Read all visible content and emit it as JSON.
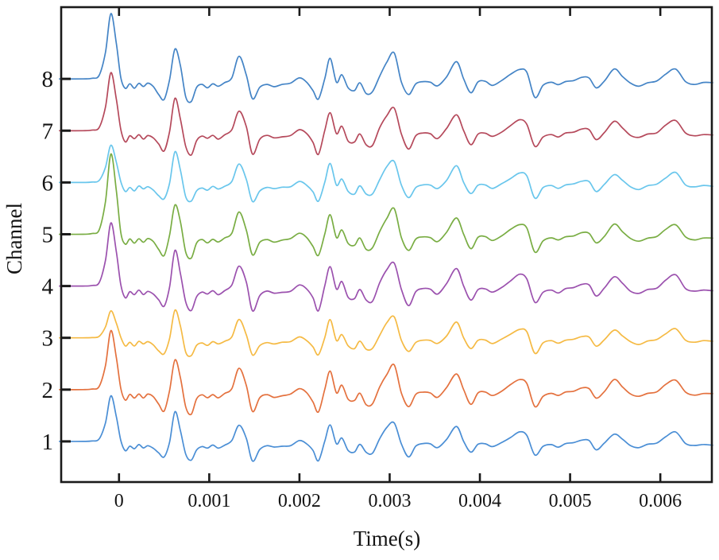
{
  "figure": {
    "background": "#ffffff",
    "axis_color": "#1a1a1a"
  },
  "chart_data": {
    "type": "line",
    "title": "",
    "xlabel": "Time(s)",
    "ylabel": "Channel",
    "xlim_s": [
      -0.00065,
      0.00658
    ],
    "ylim": [
      0.2,
      9.4
    ],
    "grid": false,
    "legend": "none",
    "xticks": [
      {
        "value_s": 0,
        "label": "0"
      },
      {
        "value_s": 0.001,
        "label": "0.001"
      },
      {
        "value_s": 0.002,
        "label": "0.002"
      },
      {
        "value_s": 0.003,
        "label": "0.003"
      },
      {
        "value_s": 0.004,
        "label": "0.004"
      },
      {
        "value_s": 0.005,
        "label": "0.005"
      },
      {
        "value_s": 0.006,
        "label": "0.006"
      }
    ],
    "yticks": [
      {
        "value": 1,
        "label": "1"
      },
      {
        "value": 2,
        "label": "2"
      },
      {
        "value": 3,
        "label": "3"
      },
      {
        "value": 4,
        "label": "4"
      },
      {
        "value": 5,
        "label": "5"
      },
      {
        "value": 6,
        "label": "6"
      },
      {
        "value": 7,
        "label": "7"
      },
      {
        "value": 8,
        "label": "8"
      }
    ],
    "series": [
      {
        "name": "Channel 1",
        "color": "#4a8ed5",
        "baseline": 1,
        "first_peak_amp": 0.88,
        "amp_scale": 0.85
      },
      {
        "name": "Channel 2",
        "color": "#e4713e",
        "baseline": 2,
        "first_peak_amp": 1.14,
        "amp_scale": 1.0
      },
      {
        "name": "Channel 3",
        "color": "#f5ba44",
        "baseline": 3,
        "first_peak_amp": 0.52,
        "amp_scale": 0.85
      },
      {
        "name": "Channel 4",
        "color": "#9b51ae",
        "baseline": 4,
        "first_peak_amp": 1.22,
        "amp_scale": 1.05
      },
      {
        "name": "Channel 5",
        "color": "#79ad43",
        "baseline": 5,
        "first_peak_amp": 1.55,
        "amp_scale": 1.0
      },
      {
        "name": "Channel 6",
        "color": "#69c6ec",
        "baseline": 6,
        "first_peak_amp": 0.72,
        "amp_scale": 0.9
      },
      {
        "name": "Channel 7",
        "color": "#b5495b",
        "baseline": 7,
        "first_peak_amp": 1.12,
        "amp_scale": 1.0
      },
      {
        "name": "Channel 8",
        "color": "#4484c6",
        "baseline": 8,
        "first_peak_amp": 1.26,
        "amp_scale": 1.0
      }
    ],
    "waveform": {
      "first_peak_window_ms": [
        -0.4,
        0.03
      ],
      "first_peak_base_amp": 1.1,
      "t_ms": [
        -0.66,
        -0.4,
        -0.3,
        -0.22,
        -0.15,
        -0.09,
        -0.03,
        0.02,
        0.07,
        0.12,
        0.17,
        0.22,
        0.27,
        0.32,
        0.38,
        0.44,
        0.5,
        0.56,
        0.62,
        0.68,
        0.74,
        0.8,
        0.86,
        0.92,
        0.98,
        1.04,
        1.1,
        1.17,
        1.25,
        1.33,
        1.41,
        1.48,
        1.56,
        1.64,
        1.72,
        1.81,
        1.9,
        2.0,
        2.08,
        2.15,
        2.21,
        2.28,
        2.34,
        2.41,
        2.47,
        2.54,
        2.61,
        2.67,
        2.74,
        2.81,
        2.89,
        2.97,
        3.05,
        3.13,
        3.21,
        3.29,
        3.37,
        3.45,
        3.53,
        3.63,
        3.74,
        3.82,
        3.9,
        3.98,
        4.06,
        4.14,
        4.24,
        4.34,
        4.44,
        4.52,
        4.61,
        4.7,
        4.79,
        4.87,
        4.95,
        5.04,
        5.13,
        5.21,
        5.29,
        5.38,
        5.49,
        5.58,
        5.67,
        5.76,
        5.86,
        5.96,
        6.06,
        6.17,
        6.28,
        6.38,
        6.48,
        6.58
      ],
      "amp": [
        0,
        0,
        0.01,
        0.06,
        0.45,
        1.1,
        0.6,
        0.02,
        -0.2,
        -0.1,
        -0.17,
        -0.08,
        -0.15,
        -0.09,
        -0.15,
        -0.28,
        -0.38,
        -0.02,
        0.62,
        0.25,
        -0.32,
        -0.44,
        -0.18,
        -0.11,
        -0.16,
        -0.09,
        -0.15,
        -0.08,
        0.02,
        0.4,
        0.08,
        -0.42,
        -0.17,
        -0.1,
        -0.14,
        -0.11,
        -0.09,
        0.02,
        -0.06,
        -0.22,
        -0.42,
        0.0,
        0.38,
        -0.06,
        0.08,
        -0.19,
        -0.23,
        -0.07,
        -0.27,
        -0.26,
        0.06,
        0.32,
        0.46,
        -0.06,
        -0.33,
        -0.1,
        -0.05,
        -0.06,
        -0.14,
        0.04,
        0.33,
        0.0,
        -0.26,
        -0.06,
        -0.05,
        -0.12,
        -0.03,
        0.09,
        0.2,
        0.13,
        -0.33,
        -0.12,
        -0.07,
        -0.12,
        -0.05,
        -0.03,
        0.03,
        0.02,
        -0.18,
        -0.04,
        0.18,
        0.05,
        -0.09,
        -0.14,
        -0.07,
        -0.04,
        0.1,
        0.2,
        -0.05,
        -0.1,
        -0.07,
        -0.08
      ]
    }
  }
}
